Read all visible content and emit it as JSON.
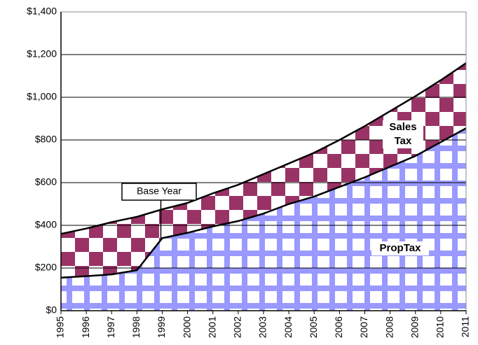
{
  "chart_data": {
    "type": "stacked_area",
    "categories": [
      "1995",
      "1996",
      "1997",
      "1998",
      "1999",
      "2000",
      "2001",
      "2002",
      "2003",
      "2004",
      "2005",
      "2006",
      "2007",
      "2008",
      "2009",
      "2010",
      "2011"
    ],
    "series": [
      {
        "name": "PropTax",
        "color": "#9999ff",
        "values": [
          155,
          162,
          170,
          190,
          340,
          365,
          395,
          420,
          455,
          500,
          535,
          580,
          625,
          675,
          725,
          790,
          855
        ]
      },
      {
        "name": "Sales Tax",
        "color": "#993366",
        "values": [
          205,
          223,
          245,
          250,
          135,
          140,
          155,
          170,
          185,
          190,
          205,
          220,
          240,
          260,
          280,
          290,
          305
        ]
      }
    ],
    "annotation": "Base Year",
    "ylim": [
      0,
      1400
    ],
    "yticks": [
      {
        "value": 0,
        "label": "$0"
      },
      {
        "value": 200,
        "label": "$200"
      },
      {
        "value": 400,
        "label": "$400"
      },
      {
        "value": 600,
        "label": "$600"
      },
      {
        "value": 800,
        "label": "$800"
      },
      {
        "value": 1000,
        "label": "$1,000"
      },
      {
        "value": 1200,
        "label": "$1,200"
      },
      {
        "value": 1400,
        "label": "$1,400"
      }
    ],
    "grid": true
  }
}
